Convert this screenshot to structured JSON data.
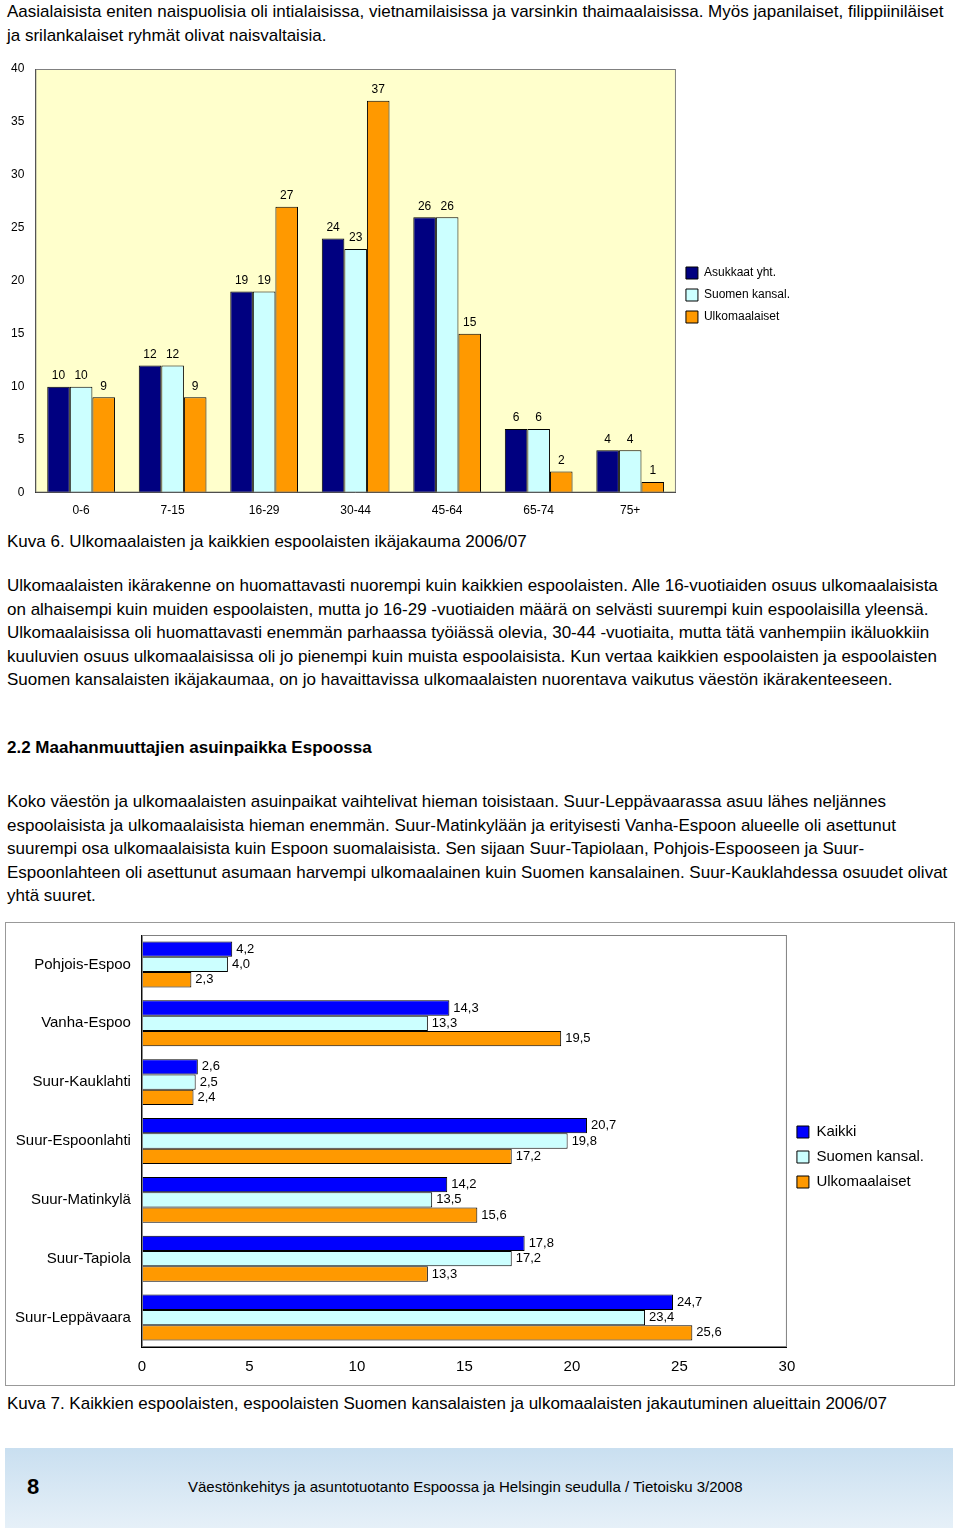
{
  "document": {
    "intro": "Aasialaisista eniten naispuolisia oli intialaisissa, vietnamilaisissa ja varsinkin thaimaalaisissa. Myös japanilaiset, filippiiniläiset ja srilankalaiset ryhmät olivat naisvaltaisia.",
    "paragraph_1": "Ulkomaalaisten ikärakenne on huomattavasti nuorempi kuin kaikkien espoolaisten. Alle 16-vuotiaiden osuus ulkomaalaisista on alhaisempi kuin muiden espoolaisten, mutta jo 16-29 -vuotiaiden määrä on selvästi suurempi kuin espoolaisilla yleensä. Ulkomaalaisissa oli huomattavasti enemmän parhaassa työiässä olevia, 30-44 -vuotiaita, mutta tätä vanhempiin ikäluokkiin kuuluvien osuus ulkomaalaisissa oli jo pienempi kuin muista espoolaisista. Kun vertaa kaikkien espoolaisten ja espoolaisten Suomen kansalaisten ikäjakaumaa, on jo havaittavissa ulkomaalaisten nuorentava vaikutus väestön ikärakenteeseen.",
    "heading": "2.2 Maahanmuuttajien asuinpaikka Espoossa",
    "paragraph_2": "Koko väestön ja ulkomaalaisten asuinpaikat vaihtelivat hieman toisistaan. Suur-Leppävaarassa asuu lähes neljännes espoolaisista ja ulkomaalaisista hieman enemmän. Suur-Matinkylään ja erityisesti Vanha-Espoon alueelle oli asettunut suurempi osa ulkomaalaisista kuin Espoon suomalaisista. Sen sijaan Suur-Tapiolaan, Pohjois-Espooseen ja Suur-Espoonlahteen oli asettunut asumaan harvempi ulkomaalainen kuin Suomen kansalainen. Suur-Kauklahdessa osuudet olivat yhtä suuret.",
    "footer": {
      "page": "8",
      "text": "Väestönkehitys ja asuntotuotanto Espoossa ja Helsingin seudulla / Tietoisku 3/2008"
    }
  },
  "chart_data": [
    {
      "type": "bar",
      "title": "Kuva 6. Ulkomaalaisten ja kaikkien espoolaisten ikäjakauma 2006/07",
      "categories": [
        "0-6",
        "7-15",
        "16-29",
        "30-44",
        "45-64",
        "65-74",
        "75+"
      ],
      "series": [
        {
          "name": "Asukkaat yht.",
          "color": "#000080",
          "values": [
            10,
            12,
            19,
            24,
            26,
            6,
            4
          ]
        },
        {
          "name": "Suomen kansal.",
          "color": "#ccffff",
          "values": [
            10,
            12,
            19,
            23,
            26,
            6,
            4
          ]
        },
        {
          "name": "Ulkomaalaiset",
          "color": "#ff9900",
          "values": [
            9,
            9,
            27,
            37,
            15,
            2,
            1
          ]
        }
      ],
      "ylim": [
        0,
        40
      ],
      "yticks": [
        0,
        5,
        10,
        15,
        20,
        25,
        30,
        35,
        40
      ],
      "grid": false,
      "legend": "right",
      "data_labels": true
    },
    {
      "type": "bar",
      "orientation": "horizontal",
      "title": "Kuva 7. Kaikkien espoolaisten, espoolaisten Suomen kansalaisten ja ulkomaalaisten jakautuminen alueittain 2006/07",
      "categories": [
        "Pohjois-Espoo",
        "Vanha-Espoo",
        "Suur-Kauklahti",
        "Suur-Espoonlahti",
        "Suur-Matinkylä",
        "Suur-Tapiola",
        "Suur-Leppävaara"
      ],
      "series": [
        {
          "name": "Kaikki",
          "color": "#0000ff",
          "values": [
            4.2,
            14.3,
            2.6,
            20.7,
            14.2,
            17.8,
            24.7
          ],
          "value_labels": [
            "4,2",
            "14,3",
            "2,6",
            "20,7",
            "14,2",
            "17,8",
            "24,7"
          ]
        },
        {
          "name": "Suomen kansal.",
          "color": "#ccffff",
          "values": [
            4.0,
            13.3,
            2.5,
            19.8,
            13.5,
            17.2,
            23.4
          ],
          "value_labels": [
            "4,0",
            "13,3",
            "2,5",
            "19,8",
            "13,5",
            "17,2",
            "23,4"
          ]
        },
        {
          "name": "Ulkomaalaiset",
          "color": "#ff9900",
          "values": [
            2.3,
            19.5,
            2.4,
            17.2,
            15.6,
            13.3,
            25.6
          ],
          "value_labels": [
            "2,3",
            "19,5",
            "2,4",
            "17,2",
            "15,6",
            "13,3",
            "25,6"
          ]
        }
      ],
      "xlim": [
        0,
        30
      ],
      "xticks": [
        0,
        5,
        10,
        15,
        20,
        25,
        30
      ],
      "grid": false,
      "legend": "right",
      "data_labels": true
    }
  ]
}
